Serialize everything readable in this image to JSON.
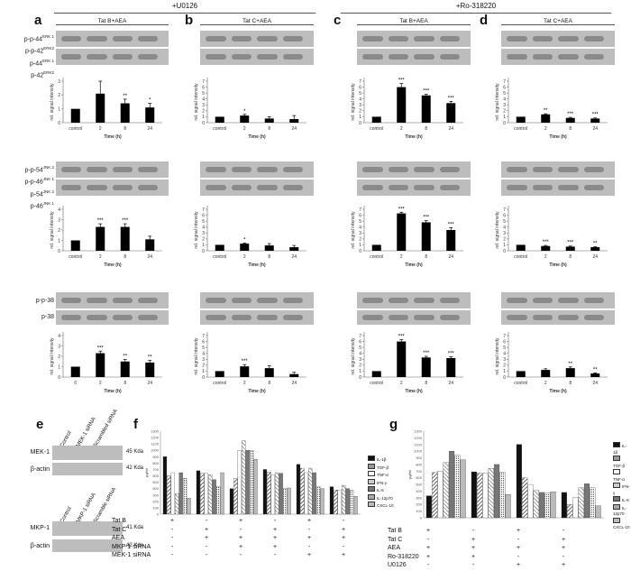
{
  "header": {
    "u0126": "+U0126",
    "ro": "+Ro-318220"
  },
  "columns": [
    {
      "letter": "a",
      "title": "Tat B+AEA"
    },
    {
      "letter": "b",
      "title": "Tat C+AEA"
    },
    {
      "letter": "c",
      "title": "Tat B+AEA"
    },
    {
      "letter": "d",
      "title": "Tat C+AEA"
    }
  ],
  "blot_labels": {
    "erk": [
      "p-p-44",
      "p-p-42",
      "p-44",
      "p-42"
    ],
    "erk_sup": [
      "ERK 1",
      "ERK2",
      "ERK 1",
      "ERK2"
    ],
    "jnk": [
      "p-p-54",
      "p-p-46",
      "p-54",
      "p-46"
    ],
    "jnk_sup": [
      "JNK 2",
      "JNK 1",
      "JNK 2",
      "JNK 1"
    ],
    "p38": [
      "p-p-38",
      "p-38"
    ]
  },
  "axis": {
    "ylabel": "rel. signal intensity",
    "xlabel": "Time (h)",
    "cats": [
      "control",
      "2",
      "8",
      "24"
    ],
    "cats_a3": [
      "0",
      "2",
      "8",
      "24"
    ]
  },
  "chart_data": [
    {
      "type": "bar",
      "panel": "a",
      "protein": "ERK",
      "categories": [
        "control",
        "2",
        "8",
        "24"
      ],
      "values": [
        1,
        2.1,
        1.4,
        1.1
      ],
      "errors": [
        0,
        0.9,
        0.3,
        0.3
      ],
      "sig": [
        "",
        "",
        "**",
        "*"
      ],
      "ylim": [
        0,
        3
      ],
      "yticks": [
        0,
        1,
        2,
        3
      ]
    },
    {
      "type": "bar",
      "panel": "b",
      "protein": "ERK",
      "categories": [
        "control",
        "2",
        "8",
        "24"
      ],
      "values": [
        1,
        1.2,
        0.7,
        0.6
      ],
      "errors": [
        0,
        0.2,
        0.3,
        0.6
      ],
      "sig": [
        "",
        "*",
        "",
        ""
      ],
      "ylim": [
        0,
        7
      ],
      "yticks": [
        0,
        1,
        2,
        3,
        4,
        5,
        6,
        7
      ]
    },
    {
      "type": "bar",
      "panel": "c",
      "protein": "ERK",
      "categories": [
        "control",
        "2",
        "8",
        "24"
      ],
      "values": [
        1,
        6,
        4.6,
        3.3
      ],
      "errors": [
        0,
        0.6,
        0.2,
        0.3
      ],
      "sig": [
        "",
        "***",
        "***",
        "***"
      ],
      "ylim": [
        0,
        7
      ],
      "yticks": [
        0,
        1,
        2,
        3,
        4,
        5,
        6,
        7
      ]
    },
    {
      "type": "bar",
      "panel": "d",
      "protein": "ERK",
      "categories": [
        "control",
        "2",
        "8",
        "24"
      ],
      "values": [
        1,
        1.4,
        0.8,
        0.7
      ],
      "errors": [
        0,
        0.1,
        0.1,
        0.1
      ],
      "sig": [
        "",
        "**",
        "***",
        "***"
      ],
      "ylim": [
        0,
        7
      ],
      "yticks": [
        0,
        1,
        2,
        3,
        4,
        5,
        6,
        7
      ]
    },
    {
      "type": "bar",
      "panel": "a",
      "protein": "JNK",
      "categories": [
        "control",
        "2",
        "8",
        "24"
      ],
      "values": [
        1,
        2.3,
        2.3,
        1.1
      ],
      "errors": [
        0,
        0.3,
        0.3,
        0.3
      ],
      "sig": [
        "",
        "***",
        "***",
        ""
      ],
      "ylim": [
        0,
        4
      ],
      "yticks": [
        0,
        1,
        2,
        3,
        4
      ]
    },
    {
      "type": "bar",
      "panel": "b",
      "protein": "JNK",
      "categories": [
        "control",
        "2",
        "8",
        "24"
      ],
      "values": [
        1,
        1.2,
        0.9,
        0.6
      ],
      "errors": [
        0,
        0.1,
        0.3,
        0.3
      ],
      "sig": [
        "",
        "*",
        "",
        ""
      ],
      "ylim": [
        0,
        7
      ],
      "yticks": [
        0,
        1,
        2,
        3,
        4,
        5,
        6,
        7
      ]
    },
    {
      "type": "bar",
      "panel": "c",
      "protein": "JNK",
      "categories": [
        "control",
        "2",
        "8",
        "24"
      ],
      "values": [
        1,
        6.3,
        4.8,
        3.5
      ],
      "errors": [
        0,
        0.2,
        0.3,
        0.4
      ],
      "sig": [
        "",
        "***",
        "***",
        "***"
      ],
      "ylim": [
        0,
        7
      ],
      "yticks": [
        0,
        1,
        2,
        3,
        4,
        5,
        6,
        7
      ]
    },
    {
      "type": "bar",
      "panel": "d",
      "protein": "JNK",
      "categories": [
        "control",
        "2",
        "8",
        "24"
      ],
      "values": [
        1,
        0.8,
        0.7,
        0.6
      ],
      "errors": [
        0,
        0.1,
        0.1,
        0.1
      ],
      "sig": [
        "",
        "***",
        "***",
        "**"
      ],
      "ylim": [
        0,
        7
      ],
      "yticks": [
        0,
        1,
        2,
        3,
        4,
        5,
        6,
        7
      ]
    },
    {
      "type": "bar",
      "panel": "a",
      "protein": "p-38",
      "categories": [
        "0",
        "2",
        "8",
        "24"
      ],
      "values": [
        1,
        2.3,
        1.5,
        1.4
      ],
      "errors": [
        0,
        0.2,
        0.2,
        0.2
      ],
      "sig": [
        "",
        "***",
        "**",
        "**"
      ],
      "ylim": [
        0,
        4
      ],
      "yticks": [
        0,
        1,
        2,
        3,
        4
      ]
    },
    {
      "type": "bar",
      "panel": "b",
      "protein": "p-38",
      "categories": [
        "control",
        "2",
        "8",
        "24"
      ],
      "values": [
        1,
        1.8,
        1.5,
        0.5
      ],
      "errors": [
        0,
        0.3,
        0.4,
        0.3
      ],
      "sig": [
        "",
        "***",
        "",
        ""
      ],
      "ylim": [
        0,
        7
      ],
      "yticks": [
        0,
        1,
        2,
        3,
        4,
        5,
        6,
        7
      ]
    },
    {
      "type": "bar",
      "panel": "c",
      "protein": "p-38",
      "categories": [
        "control",
        "2",
        "8",
        "24"
      ],
      "values": [
        1,
        6,
        3.3,
        3.2
      ],
      "errors": [
        0,
        0.3,
        0.2,
        0.2
      ],
      "sig": [
        "",
        "***",
        "***",
        "***"
      ],
      "ylim": [
        0,
        7
      ],
      "yticks": [
        0,
        1,
        2,
        3,
        4,
        5,
        6,
        7
      ]
    },
    {
      "type": "bar",
      "panel": "d",
      "protein": "p-38",
      "categories": [
        "control",
        "2",
        "8",
        "24"
      ],
      "values": [
        1,
        1.2,
        1.5,
        0.6
      ],
      "errors": [
        0,
        0.2,
        0.2,
        0.1
      ],
      "sig": [
        "",
        "",
        "**",
        "**"
      ],
      "ylim": [
        0,
        7
      ],
      "yticks": [
        0,
        1,
        2,
        3,
        4,
        5,
        6,
        7
      ]
    }
  ],
  "panel_e": {
    "letter": "e",
    "top_lanes": [
      "Control",
      "MEK-1 siRNA",
      "Scrambled siRNA"
    ],
    "top_rows": [
      "MEK-1",
      "β-actin"
    ],
    "top_kda": [
      "45 Kda",
      "42 Kda"
    ],
    "bottom_lanes": [
      "Control",
      "MKP-1 siRNA",
      "Scramble siRNA"
    ],
    "bottom_rows": [
      "MKP-1",
      "β-actin"
    ],
    "bottom_kda": [
      "41 Kda",
      "42 Kda"
    ]
  },
  "panel_f": {
    "letter": "f",
    "ylabel": "pg/ml",
    "yticks": [
      "0",
      "100",
      "200",
      "300",
      "400",
      "500",
      "600",
      "700",
      "800",
      "900",
      "1000",
      "1100",
      "1200",
      "1300"
    ],
    "legend": [
      "IL-1β",
      "TGF-β",
      "TNF-α",
      "IFN-γ",
      "IL-6",
      "IL-12p70",
      "CXCL-10"
    ],
    "groups": [
      [
        900,
        600,
        650,
        320,
        650,
        560,
        250
      ],
      [
        680,
        640,
        640,
        620,
        540,
        430,
        650
      ],
      [
        400,
        560,
        1000,
        1150,
        1000,
        1000,
        860
      ],
      [
        700,
        660,
        620,
        650,
        640,
        400,
        410
      ],
      [
        780,
        720,
        650,
        720,
        650,
        430,
        400
      ],
      [
        430,
        380,
        380,
        450,
        400,
        370,
        280
      ]
    ],
    "factors": [
      {
        "name": "Tat B",
        "signs": [
          "+",
          "-",
          "+",
          "-",
          "+",
          "-"
        ]
      },
      {
        "name": "Tat C",
        "signs": [
          "-",
          "+",
          "-",
          "+",
          "-",
          "+"
        ]
      },
      {
        "name": "AEA",
        "signs": [
          "-",
          "+",
          "+",
          "+",
          "+",
          "+"
        ]
      },
      {
        "name": "MKP-1 siRNA",
        "signs": [
          "-",
          "-",
          "+",
          "+",
          "-",
          "-"
        ]
      },
      {
        "name": "MEK-1 siRNA",
        "signs": [
          "-",
          "-",
          "-",
          "-",
          "+",
          "+"
        ]
      }
    ]
  },
  "panel_g": {
    "letter": "g",
    "ylabel": "pg/ml",
    "yticks": [
      "0",
      "100",
      "200",
      "300",
      "400",
      "500",
      "600",
      "700",
      "800",
      "900",
      "1000",
      "1100",
      "1200",
      "1300"
    ],
    "legend": [
      "IL-1β",
      "TGF-β",
      "TNF-α",
      "IFN-γ",
      "IL-6",
      "IL-12p70",
      "CXCL-10"
    ],
    "groups": [
      [
        330,
        680,
        700,
        830,
        1000,
        940,
        870
      ],
      [
        690,
        670,
        670,
        740,
        800,
        680,
        350
      ],
      [
        1100,
        600,
        500,
        410,
        380,
        370,
        390
      ],
      [
        380,
        200,
        300,
        450,
        510,
        450,
        180
      ]
    ],
    "factors": [
      {
        "name": "Tat B",
        "signs": [
          "+",
          "-",
          "+",
          "-"
        ]
      },
      {
        "name": "Tat C",
        "signs": [
          "-",
          "+",
          "-",
          "+"
        ]
      },
      {
        "name": "AEA",
        "signs": [
          "+",
          "+",
          "+",
          "+"
        ]
      },
      {
        "name": "Ro-318220",
        "signs": [
          "+",
          "+",
          "-",
          "-"
        ]
      },
      {
        "name": "U0126",
        "signs": [
          "-",
          "-",
          "+",
          "+"
        ]
      }
    ]
  }
}
